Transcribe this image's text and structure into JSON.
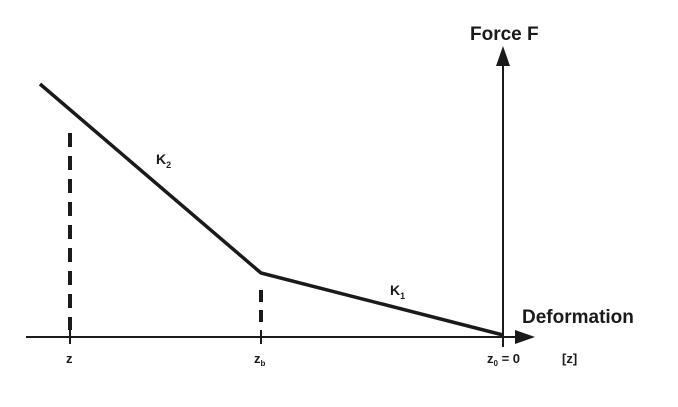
{
  "axes": {
    "y_title": "Force F",
    "x_title": "Deformation",
    "x_unit": "[z]"
  },
  "ticks": {
    "z": "z",
    "zb_main": "z",
    "zb_sub": "b",
    "z0_main": "z",
    "z0_sub": "0",
    "z0_value": " = 0"
  },
  "segments": {
    "k1_main": "K",
    "k1_sub": "1",
    "k2_main": "K",
    "k2_sub": "2"
  },
  "colors": {
    "line": "#1a1a1a"
  }
}
